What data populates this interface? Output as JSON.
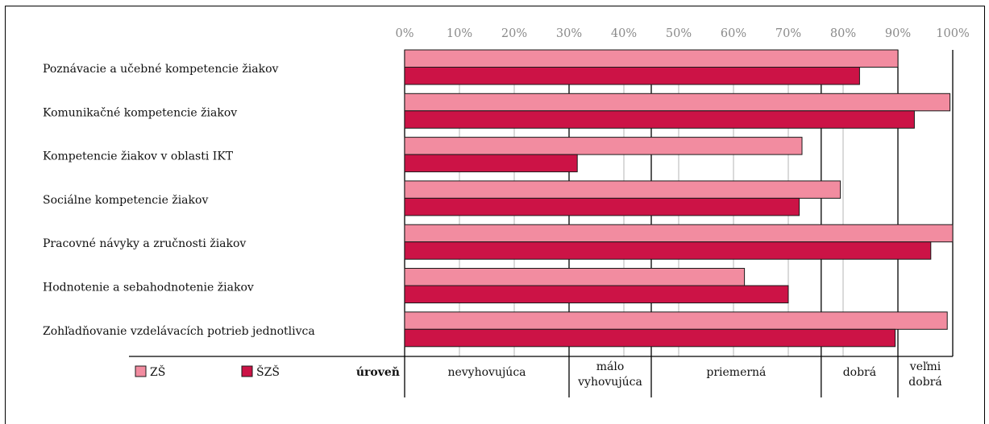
{
  "chart_data": {
    "type": "bar",
    "orientation": "horizontal",
    "categories": [
      "Poznávacie a učebné kompetencie žiakov",
      "Komunikačné kompetencie žiakov",
      "Kompetencie žiakov v oblasti IKT",
      "Sociálne kompetencie žiakov",
      "Pracovné návyky a zručnosti žiakov",
      "Hodnotenie a sebahodnotenie žiakov",
      "Zohľadňovanie vzdelávacích potrieb jednotlivca"
    ],
    "series": [
      {
        "name": "ZŠ",
        "color": "#f28ca0",
        "values": [
          90,
          99.5,
          72.5,
          79.5,
          100,
          62,
          99
        ]
      },
      {
        "name": "ŠZŠ",
        "color": "#cc1346",
        "values": [
          83,
          93,
          31.5,
          72,
          96,
          70,
          89.5
        ]
      }
    ],
    "xlim": [
      0,
      100
    ],
    "ticks": [
      "0%",
      "10%",
      "20%",
      "30%",
      "40%",
      "50%",
      "60%",
      "70%",
      "80%",
      "90%",
      "100%"
    ],
    "grid": true,
    "legend_position": "bottom-left",
    "level_label": "úroveň",
    "levels": [
      {
        "lines": [
          "nevyhovujúca"
        ],
        "from": 0,
        "to": 30
      },
      {
        "lines": [
          "málo",
          "vyhovujúca"
        ],
        "from": 30,
        "to": 45
      },
      {
        "lines": [
          "priemerná"
        ],
        "from": 45,
        "to": 76
      },
      {
        "lines": [
          "dobrá"
        ],
        "from": 76,
        "to": 90
      },
      {
        "lines": [
          "veľmi",
          "dobrá"
        ],
        "from": 90,
        "to": 100
      }
    ]
  }
}
